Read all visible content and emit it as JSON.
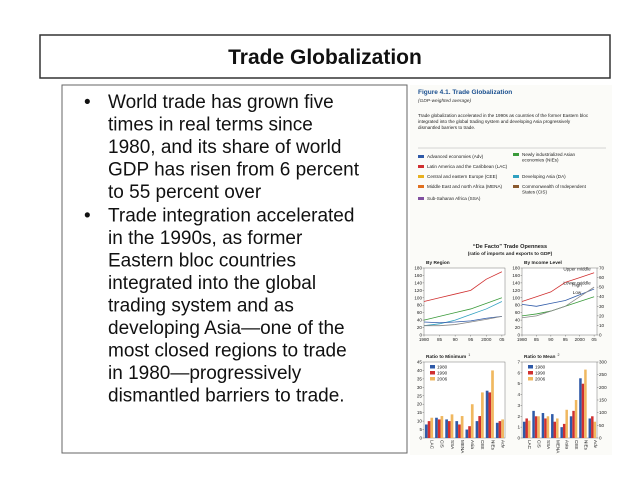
{
  "slide": {
    "title": "Trade Globalization",
    "bullets": [
      [
        "World trade has grown five",
        "times in real terms since",
        "1980, and its share of world",
        "GDP has risen from 6 percent",
        "to 55 percent over"
      ],
      [
        "Trade integration accelerated",
        "in the 1990s, as former",
        "Eastern bloc countries",
        "integrated into the global",
        "trading system and as",
        "developing Asia—one of the",
        "most closed regions to trade",
        "in 1980—progressively",
        "dismantled barriers to trade."
      ]
    ]
  },
  "figure": {
    "title": "Figure 4.1. Trade Globalization",
    "subtitle": "(GDP-weighted average)",
    "caption": [
      "Trade globalization accelerated in the 1990s as countries of the former Eastern bloc",
      "integrated into the global trading system and developing Asia progressively",
      "dismantled barriers to trade."
    ],
    "legend": [
      {
        "lines": [
          "Advanced economies (Adv)"
        ],
        "color": "#2f5aa8"
      },
      {
        "lines": [
          "Latin America and the Caribbean (LAC)"
        ],
        "color": "#d03030"
      },
      {
        "lines": [
          "Central and eastern Europe (CEE)"
        ],
        "color": "#e8b020"
      },
      {
        "lines": [
          "Middle East and north Africa (MENA)"
        ],
        "color": "#e07020"
      },
      {
        "lines": [
          "Sub-Saharan Africa (SSA)"
        ],
        "color": "#8050a0"
      },
      {
        "lines": [
          "Newly industrialized Asian",
          "economies (NIEs)"
        ],
        "color": "#3a9a3a"
      },
      {
        "lines": [
          "Developing Asia (DA)"
        ],
        "color": "#30a0c0"
      },
      {
        "lines": [
          "Commonwealth of Independent",
          "States (CIS)"
        ],
        "color": "#8a5a30"
      }
    ],
    "section_title": "“De Facto” Trade Openness",
    "section_subtitle": "(ratio of imports and exports to GDP)",
    "charts": [
      {
        "type": "line",
        "title": "By Region",
        "x": [
          1980,
          1985,
          1990,
          1995,
          2000,
          2005
        ],
        "xlim": [
          1980,
          2006
        ],
        "xticks": [
          {
            "value": 1980,
            "label": "1980"
          },
          {
            "value": 1985,
            "label": "85"
          },
          {
            "value": 1990,
            "label": "90"
          },
          {
            "value": 1995,
            "label": "95"
          },
          {
            "value": 2000,
            "label": "2000"
          },
          {
            "value": 2005,
            "label": "05"
          }
        ],
        "ylim": [
          0,
          180
        ],
        "yticks": [
          0,
          20,
          40,
          60,
          80,
          100,
          120,
          140,
          160,
          180
        ],
        "series": [
          {
            "name": "NIEs",
            "color": "#d03030",
            "values": [
              90,
              100,
              110,
              120,
              150,
              170
            ]
          },
          {
            "name": "CEE",
            "color": "#3a9a3a",
            "values": [
              40,
              50,
              60,
              70,
              85,
              100
            ]
          },
          {
            "name": "DA",
            "color": "#30a0c0",
            "values": [
              25,
              30,
              40,
              55,
              70,
              90
            ]
          },
          {
            "name": "Adv",
            "color": "#2f5aa8",
            "values": [
              35,
              33,
              35,
              38,
              45,
              50
            ]
          },
          {
            "name": "LAC",
            "color": "#888888",
            "values": [
              25,
              25,
              28,
              35,
              42,
              50
            ]
          }
        ]
      },
      {
        "type": "line",
        "title": "By Income Level",
        "x": [
          1980,
          1985,
          1990,
          1995,
          2000,
          2005
        ],
        "xlim": [
          1980,
          2006
        ],
        "xticks": [
          {
            "value": 1980,
            "label": "1980"
          },
          {
            "value": 1985,
            "label": "85"
          },
          {
            "value": 1990,
            "label": "90"
          },
          {
            "value": 1995,
            "label": "95"
          },
          {
            "value": 2000,
            "label": "2000"
          },
          {
            "value": 2005,
            "label": "05"
          }
        ],
        "ylim": [
          0,
          180
        ],
        "yticks": [
          0,
          20,
          40,
          60,
          80,
          100,
          120,
          140,
          160,
          180
        ],
        "y2lim": [
          0,
          70
        ],
        "y2ticks": [
          0,
          10,
          20,
          30,
          40,
          50,
          60,
          70
        ],
        "series": [
          {
            "name": "Upper middle",
            "color": "#d03030",
            "axis": "y2",
            "values": [
              35,
              40,
              45,
              55,
              60,
              65
            ]
          },
          {
            "name": "High",
            "color": "#2f5aa8",
            "axis": "y2",
            "values": [
              32,
              30,
              33,
              36,
              42,
              48
            ]
          },
          {
            "name": "Low",
            "color": "#3a9a3a",
            "axis": "y2",
            "values": [
              20,
              22,
              25,
              30,
              35,
              40
            ]
          },
          {
            "name": "Lower middle",
            "color": "#888888",
            "axis": "y2",
            "values": [
              18,
              20,
              25,
              30,
              40,
              50
            ]
          }
        ]
      },
      {
        "type": "bar",
        "title": "Ratio to Minimum",
        "note": "1",
        "categories": [
          "LAC",
          "CIS",
          "SSA",
          "MENA",
          "Asia",
          "CEE",
          "NIEs",
          "Adv"
        ],
        "ylim": [
          0,
          45
        ],
        "yticks": [
          0,
          5,
          10,
          15,
          20,
          25,
          30,
          35,
          40,
          45
        ],
        "series": [
          {
            "name": "1980",
            "color": "#2f5aa8",
            "values": [
              8,
              12,
              11,
              10,
              5,
              10,
              28,
              9
            ]
          },
          {
            "name": "1990",
            "color": "#d03030",
            "values": [
              10,
              11,
              10,
              8,
              7,
              13,
              27,
              10
            ]
          },
          {
            "name": "2006",
            "color": "#f0b860",
            "values": [
              12,
              13,
              14,
              13,
              20,
              27,
              40,
              11
            ]
          }
        ]
      },
      {
        "type": "bar",
        "title": "Ratio to Mean",
        "note": "2",
        "categories": [
          "LAC",
          "CIS",
          "SSA",
          "MENA",
          "Asia",
          "CEE",
          "NIEs",
          "Adv"
        ],
        "ylim": [
          0,
          7
        ],
        "yticks": [
          0,
          1,
          2,
          3,
          4,
          5,
          6,
          7
        ],
        "y2lim": [
          0,
          300
        ],
        "y2ticks": [
          0,
          50,
          100,
          150,
          200,
          250,
          300
        ],
        "series": [
          {
            "name": "1980",
            "color": "#2f5aa8",
            "values": [
              1.5,
              2.5,
              2.3,
              2.2,
              1.0,
              2.0,
              5.5,
              1.8
            ]
          },
          {
            "name": "1990",
            "color": "#d03030",
            "values": [
              1.8,
              2.0,
              1.8,
              1.5,
              1.3,
              2.5,
              5.0,
              2.0
            ]
          },
          {
            "name": "2006",
            "color": "#f0b860",
            "values": [
              1.6,
              2.0,
              2.0,
              1.8,
              2.6,
              3.5,
              6.3,
              1.5
            ]
          }
        ]
      }
    ]
  }
}
